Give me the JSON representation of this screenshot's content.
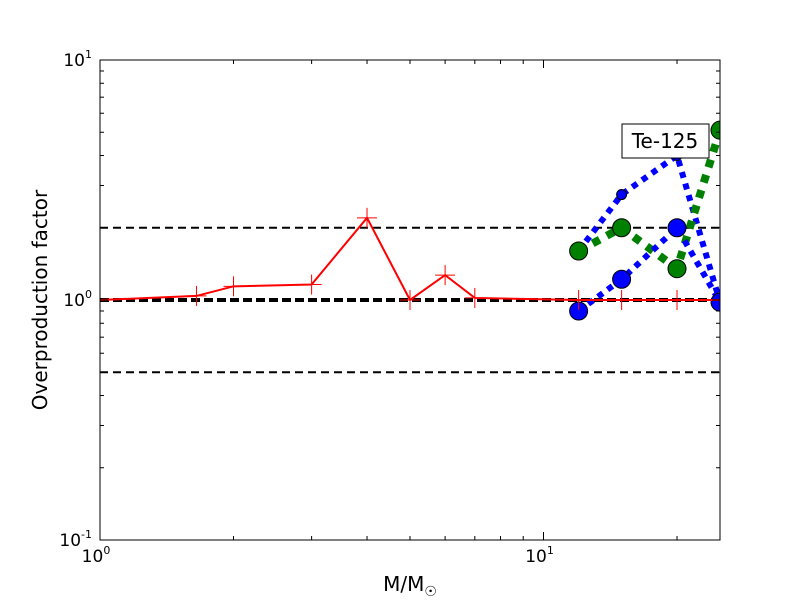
{
  "chart_data": {
    "type": "line",
    "title": "",
    "xlabel": "M/M",
    "xlabel_subscript": "☉",
    "ylabel": "Overproduction factor",
    "xscale": "log",
    "yscale": "log",
    "xlim": [
      1,
      25
    ],
    "ylim": [
      0.1,
      10
    ],
    "xticks": [
      {
        "base": "10",
        "exp": "0"
      },
      {
        "base": "10",
        "exp": "1"
      }
    ],
    "yticks": [
      {
        "base": "10",
        "exp": "-1"
      },
      {
        "base": "10",
        "exp": "0"
      },
      {
        "base": "10",
        "exp": "1"
      }
    ],
    "annotation": "Te-125",
    "reference_lines": [
      {
        "y": 2.0,
        "style": "dashed",
        "color": "#000000",
        "width": "thin"
      },
      {
        "y": 1.0,
        "style": "dashed",
        "color": "#000000",
        "width": "thick"
      },
      {
        "y": 0.5,
        "style": "dashed",
        "color": "#000000",
        "width": "thin"
      }
    ],
    "series": [
      {
        "color": "#ff0000",
        "style": "solid",
        "marker": "plus",
        "x": [
          1,
          1.65,
          2,
          3,
          4,
          5,
          6,
          7,
          12,
          15,
          20,
          25
        ],
        "y": [
          1.0,
          1.04,
          1.14,
          1.16,
          2.2,
          1.0,
          1.27,
          1.02,
          1.0,
          1.0,
          1.0,
          1.0
        ]
      },
      {
        "color": "#0000ff",
        "style": "dotted",
        "marker": "circle",
        "marker_size": "small",
        "x": [
          12,
          15,
          20,
          25
        ],
        "y": [
          1.6,
          2.75,
          4.0,
          0.98
        ]
      },
      {
        "color": "#008000",
        "style": "dotted",
        "marker": "circle",
        "marker_size": "large",
        "x": [
          12,
          15,
          20,
          25
        ],
        "y": [
          1.6,
          2.0,
          1.35,
          5.1
        ]
      },
      {
        "color": "#0000ff",
        "style": "dotted",
        "marker": "circle",
        "marker_size": "large",
        "x": [
          12,
          15,
          20,
          25
        ],
        "y": [
          0.9,
          1.22,
          2.0,
          0.98
        ]
      }
    ]
  }
}
